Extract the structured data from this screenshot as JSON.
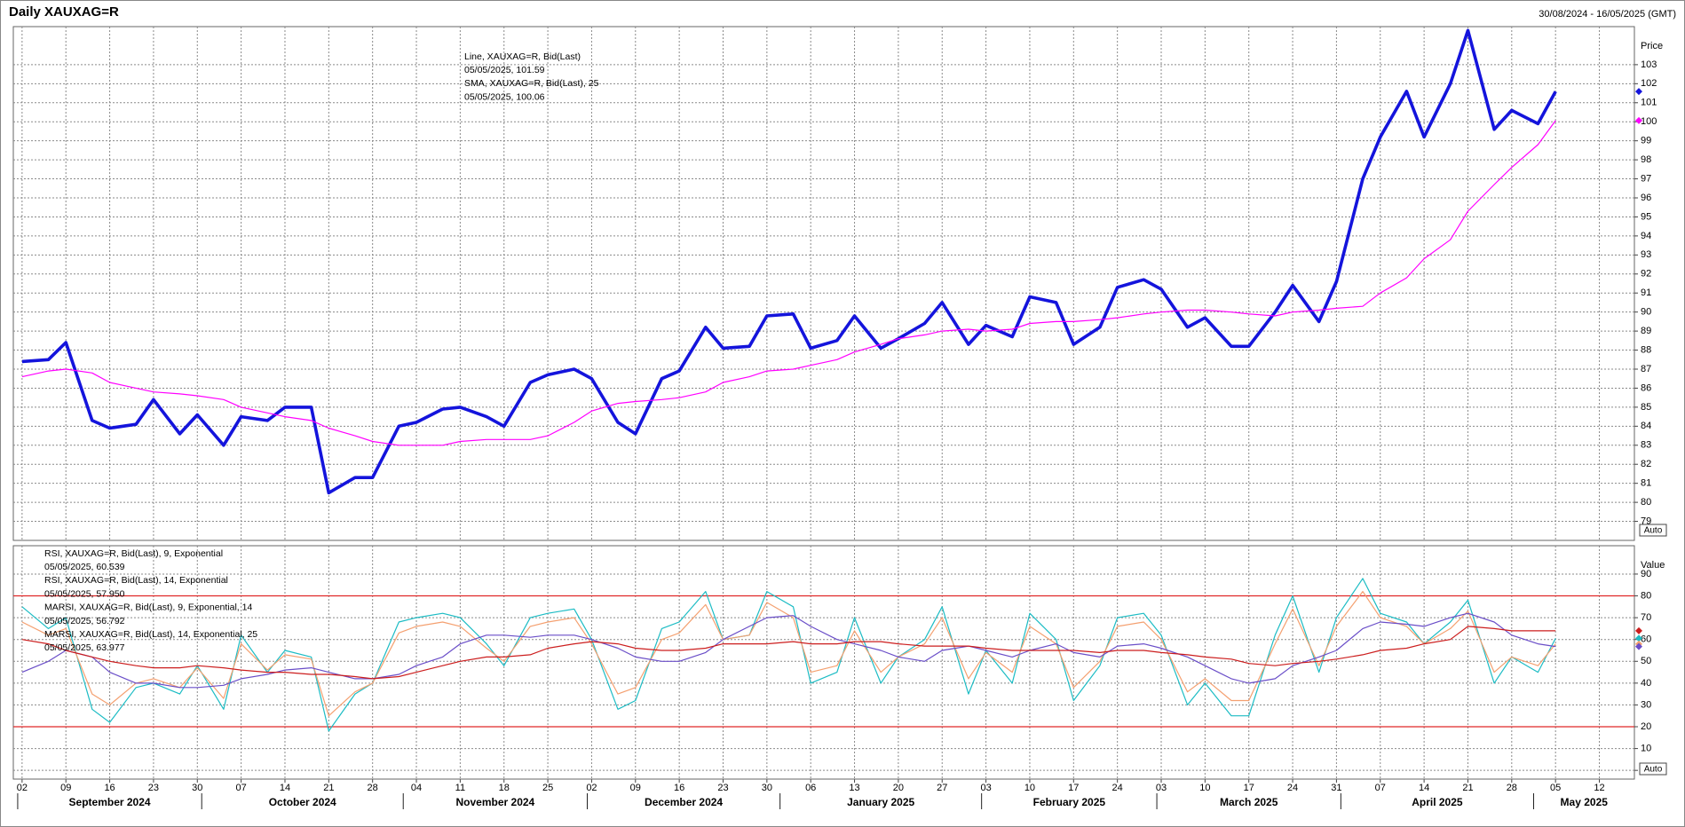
{
  "header": {
    "title": "Daily XAUXAG=R",
    "range": "30/08/2024 - 16/05/2025 (GMT)"
  },
  "chart_data": {
    "type": "line",
    "x": [
      "2024-09-02",
      "2024-09-05",
      "2024-09-09",
      "2024-09-12",
      "2024-09-16",
      "2024-09-19",
      "2024-09-23",
      "2024-09-26",
      "2024-09-30",
      "2024-10-03",
      "2024-10-07",
      "2024-10-10",
      "2024-10-14",
      "2024-10-17",
      "2024-10-21",
      "2024-10-24",
      "2024-10-28",
      "2024-10-31",
      "2024-11-04",
      "2024-11-07",
      "2024-11-11",
      "2024-11-14",
      "2024-11-18",
      "2024-11-21",
      "2024-11-25",
      "2024-11-28",
      "2024-12-02",
      "2024-12-05",
      "2024-12-09",
      "2024-12-12",
      "2024-12-16",
      "2024-12-19",
      "2024-12-23",
      "2024-12-26",
      "2024-12-30",
      "2025-01-02",
      "2025-01-06",
      "2025-01-09",
      "2025-01-13",
      "2025-01-16",
      "2025-01-20",
      "2025-01-23",
      "2025-01-27",
      "2025-01-30",
      "2025-02-03",
      "2025-02-06",
      "2025-02-10",
      "2025-02-13",
      "2025-02-17",
      "2025-02-20",
      "2025-02-24",
      "2025-02-27",
      "2025-03-03",
      "2025-03-06",
      "2025-03-10",
      "2025-03-13",
      "2025-03-17",
      "2025-03-20",
      "2025-03-24",
      "2025-03-27",
      "2025-03-31",
      "2025-04-03",
      "2025-04-07",
      "2025-04-10",
      "2025-04-14",
      "2025-04-17",
      "2025-04-21",
      "2025-04-24",
      "2025-04-28",
      "2025-05-01",
      "2025-05-05"
    ],
    "xlim": [
      "2024-08-30",
      "2025-05-16"
    ],
    "xticks": [
      {
        "value": "2024-09-02",
        "label": "02"
      },
      {
        "value": "2024-09-09",
        "label": "09"
      },
      {
        "value": "2024-09-16",
        "label": "16"
      },
      {
        "value": "2024-09-23",
        "label": "23"
      },
      {
        "value": "2024-09-30",
        "label": "30"
      },
      {
        "value": "2024-10-07",
        "label": "07"
      },
      {
        "value": "2024-10-14",
        "label": "14"
      },
      {
        "value": "2024-10-21",
        "label": "21"
      },
      {
        "value": "2024-10-28",
        "label": "28"
      },
      {
        "value": "2024-11-04",
        "label": "04"
      },
      {
        "value": "2024-11-11",
        "label": "11"
      },
      {
        "value": "2024-11-18",
        "label": "18"
      },
      {
        "value": "2024-11-25",
        "label": "25"
      },
      {
        "value": "2024-12-02",
        "label": "02"
      },
      {
        "value": "2024-12-09",
        "label": "09"
      },
      {
        "value": "2024-12-16",
        "label": "16"
      },
      {
        "value": "2024-12-23",
        "label": "23"
      },
      {
        "value": "2024-12-30",
        "label": "30"
      },
      {
        "value": "2025-01-06",
        "label": "06"
      },
      {
        "value": "2025-01-13",
        "label": "13"
      },
      {
        "value": "2025-01-20",
        "label": "20"
      },
      {
        "value": "2025-01-27",
        "label": "27"
      },
      {
        "value": "2025-02-03",
        "label": "03"
      },
      {
        "value": "2025-02-10",
        "label": "10"
      },
      {
        "value": "2025-02-17",
        "label": "17"
      },
      {
        "value": "2025-02-24",
        "label": "24"
      },
      {
        "value": "2025-03-03",
        "label": "03"
      },
      {
        "value": "2025-03-10",
        "label": "10"
      },
      {
        "value": "2025-03-17",
        "label": "17"
      },
      {
        "value": "2025-03-24",
        "label": "24"
      },
      {
        "value": "2025-03-31",
        "label": "31"
      },
      {
        "value": "2025-04-07",
        "label": "07"
      },
      {
        "value": "2025-04-14",
        "label": "14"
      },
      {
        "value": "2025-04-21",
        "label": "21"
      },
      {
        "value": "2025-04-28",
        "label": "28"
      },
      {
        "value": "2025-05-05",
        "label": "05"
      },
      {
        "value": "2025-05-12",
        "label": "12"
      }
    ],
    "months": [
      {
        "value": "2024-09",
        "label": "September 2024"
      },
      {
        "value": "2024-10",
        "label": "October 2024"
      },
      {
        "value": "2024-11",
        "label": "November 2024"
      },
      {
        "value": "2024-12",
        "label": "December 2024"
      },
      {
        "value": "2025-01",
        "label": "January 2025"
      },
      {
        "value": "2025-02",
        "label": "February 2025"
      },
      {
        "value": "2025-03",
        "label": "March 2025"
      },
      {
        "value": "2025-04",
        "label": "April 2025"
      },
      {
        "value": "2025-05",
        "label": "May 2025"
      }
    ],
    "grid": true,
    "panels": [
      {
        "ylabel": "Price",
        "button": "Auto",
        "ylim": [
          78,
          105
        ],
        "yticks": [
          79,
          80,
          81,
          82,
          83,
          84,
          85,
          86,
          87,
          88,
          89,
          90,
          91,
          92,
          93,
          94,
          95,
          96,
          97,
          98,
          99,
          100,
          101,
          102,
          103
        ],
        "series": [
          {
            "name": "Line, XAUXAG=R, Bid(Last)",
            "last": "05/05/2025, 101.59",
            "color": "#1414dc",
            "values": [
              87.4,
              87.5,
              88.4,
              84.3,
              83.9,
              84.1,
              85.4,
              83.6,
              84.6,
              83.0,
              84.5,
              84.3,
              85.0,
              85.0,
              80.5,
              81.3,
              81.3,
              84.0,
              84.2,
              84.9,
              85.0,
              84.5,
              84.0,
              86.3,
              86.7,
              87.0,
              86.5,
              84.2,
              83.6,
              86.5,
              86.9,
              89.2,
              88.1,
              88.2,
              89.8,
              89.9,
              88.1,
              88.5,
              89.8,
              88.1,
              88.6,
              89.4,
              90.5,
              88.3,
              89.3,
              88.7,
              90.8,
              90.5,
              88.3,
              89.2,
              91.3,
              91.7,
              91.2,
              89.2,
              89.7,
              88.2,
              88.2,
              90.0,
              91.4,
              89.5,
              91.6,
              97.0,
              99.2,
              101.6,
              99.2,
              102.0,
              104.8,
              99.6,
              100.6,
              99.9,
              101.59
            ]
          },
          {
            "name": "SMA, XAUXAG=R, Bid(Last),  25",
            "last": "05/05/2025, 100.06",
            "color": "#ff00ff",
            "values": [
              86.6,
              86.9,
              87.0,
              86.8,
              86.3,
              86.0,
              85.8,
              85.7,
              85.6,
              85.4,
              85.0,
              84.7,
              84.5,
              84.3,
              83.9,
              83.5,
              83.2,
              83.0,
              83.0,
              83.0,
              83.2,
              83.3,
              83.3,
              83.3,
              83.5,
              84.2,
              84.8,
              85.2,
              85.3,
              85.4,
              85.5,
              85.8,
              86.3,
              86.6,
              86.9,
              87.0,
              87.2,
              87.5,
              87.9,
              88.3,
              88.6,
              88.8,
              89.0,
              89.1,
              89.0,
              89.1,
              89.4,
              89.5,
              89.5,
              89.6,
              89.7,
              89.9,
              90.0,
              90.1,
              90.1,
              90.0,
              89.9,
              89.8,
              90.0,
              90.1,
              90.2,
              90.3,
              91.0,
              91.8,
              92.8,
              93.8,
              95.3,
              96.7,
              97.6,
              98.8,
              100.06
            ]
          }
        ]
      },
      {
        "ylabel": "Value",
        "button": "Auto",
        "ylim": [
          -4,
          103
        ],
        "yticks": [
          0,
          10,
          20,
          30,
          40,
          50,
          60,
          70,
          80,
          90
        ],
        "hlines": [
          20,
          80
        ],
        "hline_color": "#e02828",
        "series": [
          {
            "name": "RSI, XAUXAG=R, Bid(Last),  9, Exponential",
            "last": "05/05/2025, 60.539",
            "color": "#1cbcc4",
            "values": [
              75,
              65,
              70,
              28,
              22,
              38,
              40,
              35,
              48,
              28,
              62,
              45,
              55,
              52,
              18,
              35,
              40,
              68,
              70,
              72,
              70,
              58,
              48,
              70,
              72,
              74,
              60,
              28,
              32,
              65,
              68,
              82,
              60,
              62,
              82,
              75,
              40,
              45,
              70,
              40,
              52,
              60,
              75,
              35,
              55,
              40,
              72,
              60,
              32,
              48,
              70,
              72,
              62,
              30,
              40,
              25,
              25,
              62,
              80,
              45,
              70,
              88,
              72,
              68,
              58,
              68,
              78,
              40,
              52,
              45,
              60.539
            ]
          },
          {
            "name": "RSI, XAUXAG=R, Bid(Last),  14, Exponential",
            "last": "05/05/2025, 57.950",
            "color": "#f4a070",
            "values": [
              68,
              62,
              65,
              35,
              30,
              40,
              42,
              38,
              47,
              33,
              58,
              46,
              53,
              51,
              25,
              36,
              40,
              63,
              66,
              68,
              66,
              56,
              50,
              66,
              68,
              70,
              58,
              35,
              38,
              60,
              63,
              76,
              60,
              62,
              77,
              70,
              45,
              48,
              64,
              45,
              52,
              58,
              70,
              42,
              54,
              45,
              66,
              58,
              38,
              50,
              66,
              68,
              60,
              36,
              42,
              32,
              32,
              58,
              74,
              48,
              66,
              82,
              70,
              66,
              58,
              65,
              73,
              45,
              52,
              48,
              57.95
            ]
          },
          {
            "name": "MARSI, XAUXAG=R, Bid(Last),  9, Exponential, 14",
            "last": "05/05/2025, 56.792",
            "color": "#6a4ec8",
            "values": [
              45,
              50,
              55,
              52,
              45,
              40,
              40,
              38,
              38,
              39,
              42,
              44,
              46,
              47,
              45,
              42,
              42,
              44,
              48,
              52,
              58,
              62,
              62,
              61,
              62,
              62,
              60,
              56,
              52,
              50,
              50,
              54,
              60,
              66,
              70,
              71,
              66,
              60,
              58,
              55,
              52,
              50,
              55,
              57,
              55,
              52,
              55,
              58,
              54,
              52,
              57,
              58,
              56,
              52,
              48,
              42,
              40,
              42,
              48,
              52,
              55,
              65,
              68,
              67,
              66,
              70,
              72,
              68,
              62,
              58,
              56.792
            ]
          },
          {
            "name": "MARSI, XAUXAG=R, Bid(Last),  14, Exponential, 25",
            "last": "05/05/2025, 63.977",
            "color": "#cc1e1e",
            "values": [
              60,
              58,
              55,
              52,
              50,
              48,
              47,
              47,
              48,
              47,
              46,
              45,
              45,
              44,
              44,
              43,
              42,
              43,
              45,
              48,
              50,
              52,
              52,
              53,
              56,
              58,
              59,
              58,
              56,
              55,
              55,
              56,
              58,
              58,
              58,
              59,
              58,
              58,
              59,
              59,
              58,
              57,
              57,
              57,
              56,
              55,
              55,
              55,
              55,
              54,
              55,
              55,
              54,
              53,
              52,
              51,
              49,
              48,
              49,
              50,
              51,
              53,
              55,
              56,
              58,
              60,
              66,
              65,
              64,
              64,
              63.977
            ]
          }
        ]
      }
    ]
  }
}
